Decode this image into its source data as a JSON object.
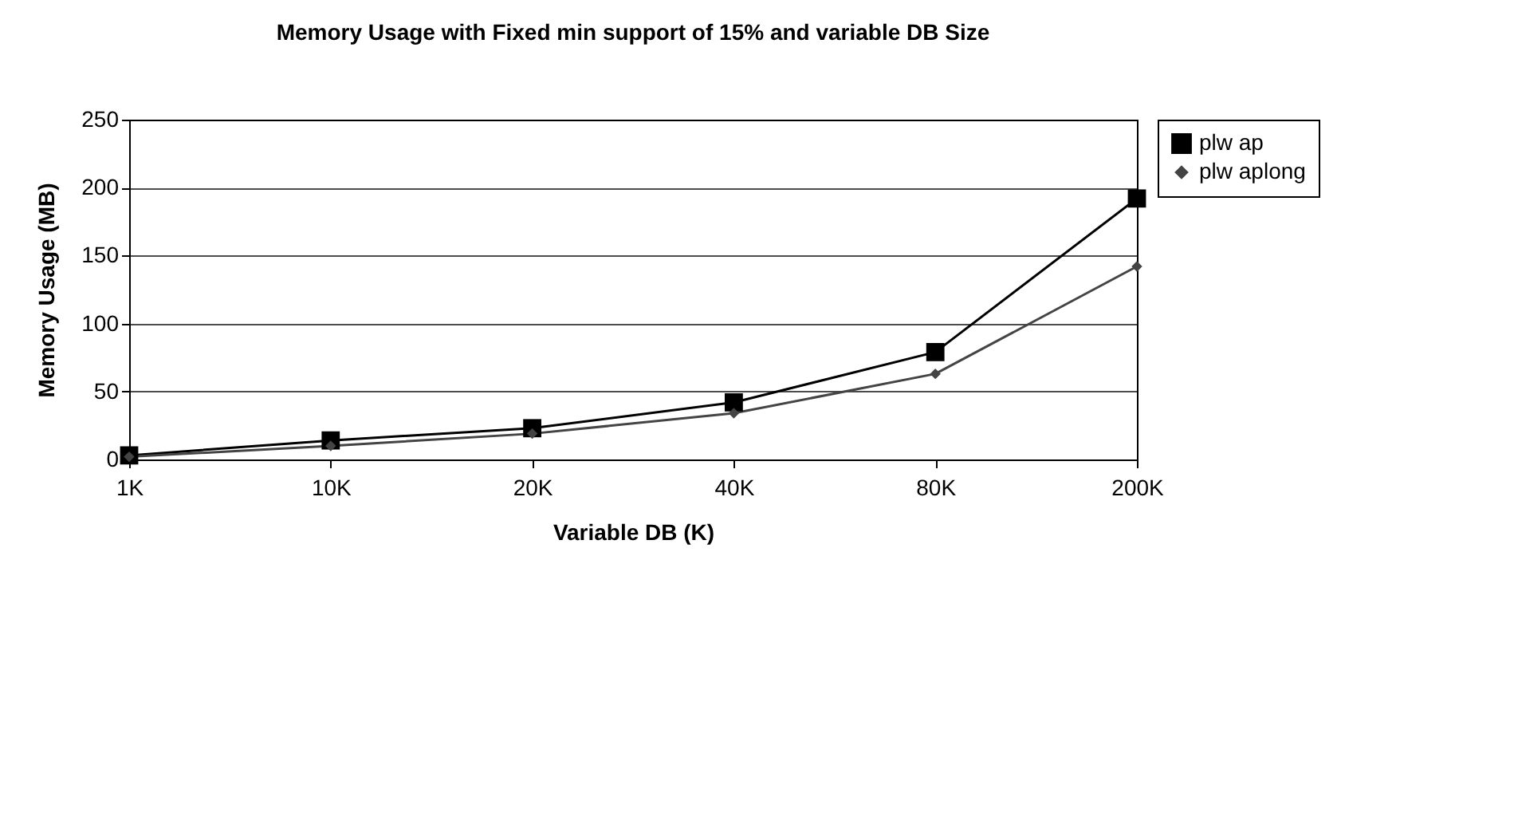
{
  "chart_data": {
    "type": "line",
    "title": "Memory Usage with Fixed min support of 15% and variable DB Size",
    "xlabel": "Variable DB (K)",
    "ylabel": "Memory Usage (MB)",
    "categories": [
      "1K",
      "10K",
      "20K",
      "40K",
      "80K",
      "200K"
    ],
    "series": [
      {
        "name": "plw ap",
        "color": "#000000",
        "marker": "square",
        "values": [
          3,
          14,
          23,
          42,
          79,
          192
        ]
      },
      {
        "name": "plw aplong",
        "color": "#444444",
        "marker": "diamond",
        "values": [
          2,
          10,
          19,
          34,
          63,
          142
        ]
      }
    ],
    "ylim": [
      0,
      250
    ],
    "yticks": [
      0,
      50,
      100,
      150,
      200,
      250
    ],
    "grid": "y",
    "legend": "right"
  }
}
